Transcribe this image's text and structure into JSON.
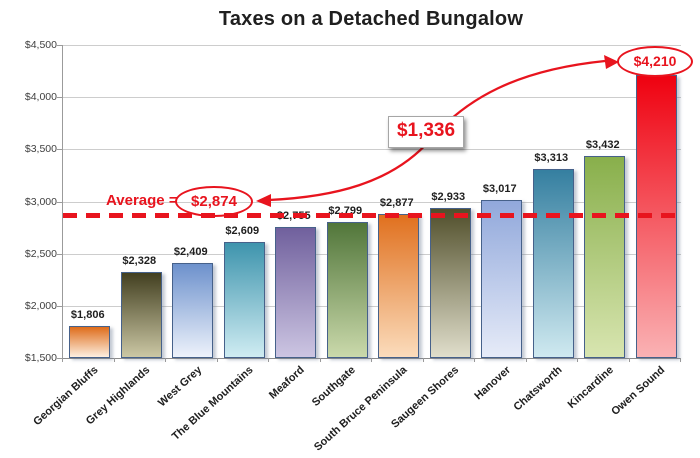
{
  "title": "Taxes on a Detached Bungalow",
  "average_callout": {
    "prefix": "Average =",
    "value": "$2,874"
  },
  "difference_callout": "$1,336",
  "max_callout": "$4,210",
  "colors": {
    "accent_red": "#e8141e",
    "grid": "#cdcdcd",
    "axis": "#9b9b9b",
    "text_dark": "#1f1f1f",
    "bar_border": "#46618a"
  },
  "chart_data": {
    "type": "bar",
    "title": "Taxes on a Detached Bungalow",
    "categories": [
      "Georgian Bluffs",
      "Grey Highlands",
      "West Grey",
      "The Blue Mountains",
      "Meaford",
      "Southgate",
      "South Bruce Peninsula",
      "Saugeen Shores",
      "Hanover",
      "Chatsworth",
      "Kincardine",
      "Owen Sound"
    ],
    "values": [
      1806,
      2328,
      2409,
      2609,
      2755,
      2799,
      2877,
      2933,
      3017,
      3313,
      3432,
      4210
    ],
    "value_labels": [
      "$1,806",
      "$2,328",
      "$2,409",
      "$2,609",
      "$2,755",
      "$2,799",
      "$2,877",
      "$2,933",
      "$3,017",
      "$3,313",
      "$3,432",
      "$4,210"
    ],
    "bar_gradients": [
      [
        "#de6c1b",
        "#fdefe0"
      ],
      [
        "#423f20",
        "#cbc7a4"
      ],
      [
        "#6d91cc",
        "#edf2fb"
      ],
      [
        "#3e94ad",
        "#cfecf2"
      ],
      [
        "#70609d",
        "#ccc5e2"
      ],
      [
        "#51763a",
        "#cad9ab"
      ],
      [
        "#e0701e",
        "#fbdcbc"
      ],
      [
        "#514f2b",
        "#e0decb"
      ],
      [
        "#91a8db",
        "#e6ebf8"
      ],
      [
        "#357fa0",
        "#cfe9f0"
      ],
      [
        "#88af4b",
        "#d8e5b0"
      ],
      [
        "#ef0110",
        "#fab2b4"
      ]
    ],
    "ylim": [
      1500,
      4500
    ],
    "y_ticks": [
      {
        "value": 4500,
        "label": "$4,500"
      },
      {
        "value": 4000,
        "label": "$4,000"
      },
      {
        "value": 3500,
        "label": "$3,500"
      },
      {
        "value": 3000,
        "label": "$3,000"
      },
      {
        "value": 2500,
        "label": "$2,500"
      },
      {
        "value": 2000,
        "label": "$2,000"
      },
      {
        "value": 1500,
        "label": "$1,500"
      }
    ],
    "average_value": 2874,
    "max_callout_index": 11,
    "grid": true,
    "legend": false,
    "xlabel": "",
    "ylabel": ""
  }
}
